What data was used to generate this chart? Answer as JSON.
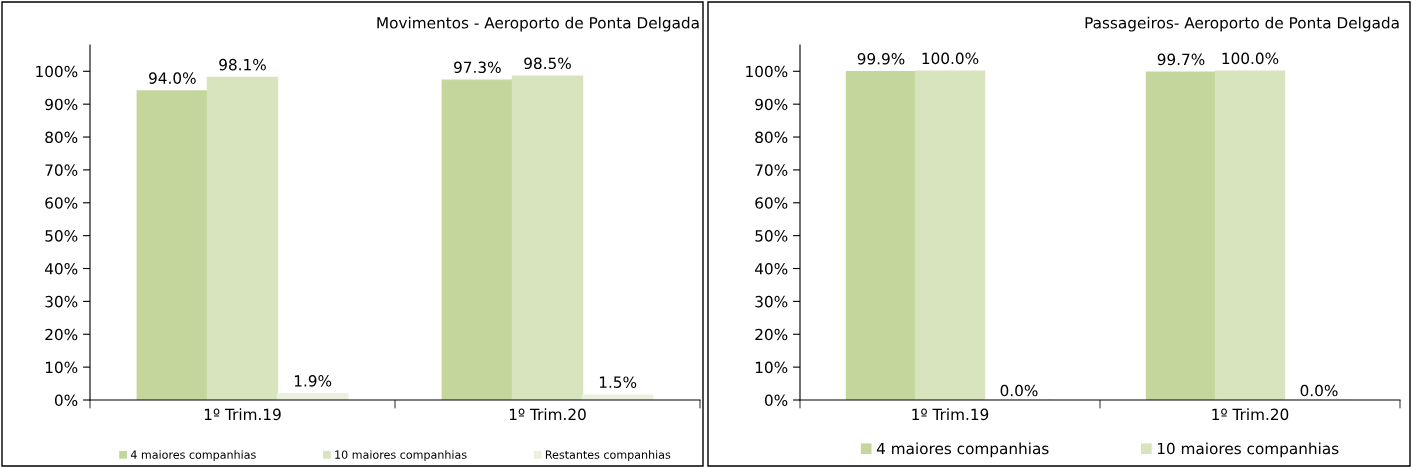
{
  "chart_data": [
    {
      "type": "bar",
      "title": "Movimentos - Aeroporto de Ponta Delgada",
      "categories": [
        "1º Trim.19",
        "1º Trim.20"
      ],
      "series": [
        {
          "name": "4 maiores companhias",
          "color": "#c3d69b",
          "values": [
            94.0,
            97.3
          ],
          "value_labels": [
            "94.0%",
            "97.3%"
          ]
        },
        {
          "name": "10 maiores companhias",
          "color": "#d7e4bd",
          "values": [
            98.1,
            98.5
          ],
          "value_labels": [
            "98.1%",
            "98.5%"
          ]
        },
        {
          "name": "Restantes companhias",
          "color": "#ebf1de",
          "values": [
            1.9,
            1.5
          ],
          "value_labels": [
            "1.9%",
            "1.5%"
          ]
        }
      ],
      "ylim": [
        0,
        108
      ],
      "yticks": [
        {
          "value": 0,
          "label": "0%"
        },
        {
          "value": 10,
          "label": "10%"
        },
        {
          "value": 20,
          "label": "20%"
        },
        {
          "value": 30,
          "label": "30%"
        },
        {
          "value": 40,
          "label": "40%"
        },
        {
          "value": 50,
          "label": "50%"
        },
        {
          "value": 60,
          "label": "60%"
        },
        {
          "value": 70,
          "label": "70%"
        },
        {
          "value": 80,
          "label": "80%"
        },
        {
          "value": 90,
          "label": "90%"
        },
        {
          "value": 100,
          "label": "100%"
        }
      ],
      "grid": false,
      "legend": "bottom"
    },
    {
      "type": "bar",
      "title": "Passageiros- Aeroporto de Ponta Delgada",
      "categories": [
        "1º Trim.19",
        "1º Trim.20"
      ],
      "series": [
        {
          "name": "4 maiores companhias",
          "color": "#c3d69b",
          "values": [
            99.9,
            99.7
          ],
          "value_labels": [
            "99.9%",
            "99.7%"
          ]
        },
        {
          "name": "10 maiores companhias",
          "color": "#d7e4bd",
          "values": [
            100.0,
            100.0
          ],
          "value_labels": [
            "100.0%",
            "100.0%"
          ]
        },
        {
          "color": "#ebf1de",
          "values": [
            0.0,
            0.0
          ],
          "value_labels": [
            "0.0%",
            "0.0%"
          ]
        }
      ],
      "ylim": [
        0,
        108
      ],
      "yticks": [
        {
          "value": 0,
          "label": "0%"
        },
        {
          "value": 10,
          "label": "10%"
        },
        {
          "value": 20,
          "label": "20%"
        },
        {
          "value": 30,
          "label": "30%"
        },
        {
          "value": 40,
          "label": "40%"
        },
        {
          "value": 50,
          "label": "50%"
        },
        {
          "value": 60,
          "label": "60%"
        },
        {
          "value": 70,
          "label": "70%"
        },
        {
          "value": 80,
          "label": "80%"
        },
        {
          "value": 90,
          "label": "90%"
        },
        {
          "value": 100,
          "label": "100%"
        }
      ],
      "grid": false,
      "legend": "bottom"
    }
  ]
}
